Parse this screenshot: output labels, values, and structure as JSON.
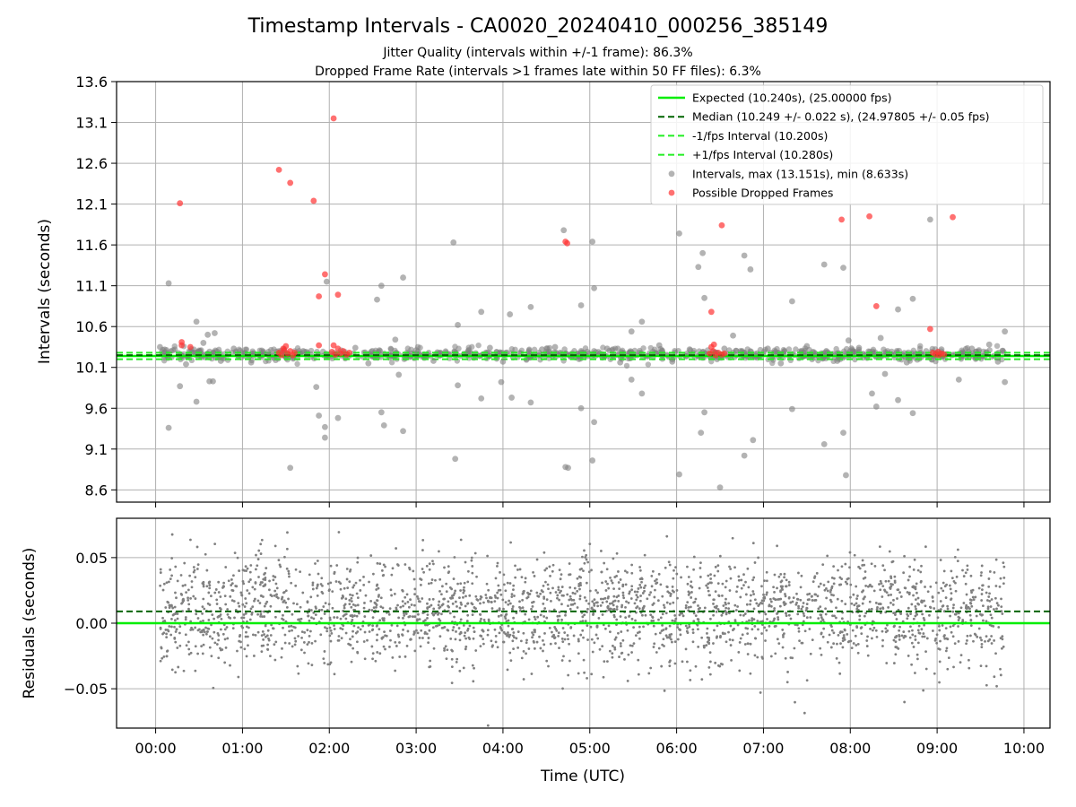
{
  "title": "Timestamp Intervals - CA0020_20240410_000256_385149",
  "subtitle_lines": [
    "Jitter Quality (intervals within +/-1 frame): 86.3%",
    "Dropped Frame Rate (intervals >1 frames late within 50 FF files): 6.3%"
  ],
  "colors": {
    "expected": "#00ee00",
    "median": "#006400",
    "fps_band": "#22ee22",
    "intervals": "#808080",
    "dropped": "#ff3333",
    "grid": "#b0b0b0"
  },
  "chart_data": [
    {
      "type": "scatter",
      "ylabel": "Intervals (seconds)",
      "xlim_hours": [
        -0.45,
        10.3
      ],
      "ylim": [
        8.45,
        13.6
      ],
      "yticks": [
        8.6,
        9.1,
        9.6,
        10.1,
        10.6,
        11.1,
        11.6,
        12.1,
        12.6,
        13.1,
        13.6
      ],
      "ytick_labels": [
        "8.6",
        "9.1",
        "9.6",
        "10.1",
        "10.6",
        "11.1",
        "11.6",
        "12.1",
        "12.6",
        "13.1",
        "13.6"
      ],
      "grid": true,
      "legend_position": "top-right",
      "lines": {
        "expected": 10.24,
        "median": 10.249,
        "minus_fps": 10.2,
        "plus_fps": 10.28
      },
      "legend": [
        {
          "label": "Expected (10.240s), (25.00000 fps)",
          "kind": "solid",
          "color_key": "expected"
        },
        {
          "label": "Median (10.249 +/- 0.022 s), (24.97805 +/- 0.05 fps)",
          "kind": "dashed",
          "color_key": "median"
        },
        {
          "label": "-1/fps Interval (10.200s)",
          "kind": "dashed",
          "color_key": "fps_band"
        },
        {
          "label": "+1/fps Interval (10.280s)",
          "kind": "dashed",
          "color_key": "fps_band"
        },
        {
          "label": "Intervals, max (13.151s), min (8.633s)",
          "kind": "dot",
          "color_key": "intervals"
        },
        {
          "label": "Possible Dropped Frames",
          "kind": "dot",
          "color_key": "dropped"
        }
      ],
      "series": [
        {
          "name": "Intervals, max (13.151s), min (8.633s)",
          "points": [
            [
              0.15,
              11.13
            ],
            [
              0.15,
              9.36
            ],
            [
              0.28,
              9.87
            ],
            [
              0.47,
              10.66
            ],
            [
              0.47,
              9.68
            ],
            [
              0.6,
              10.5
            ],
            [
              0.62,
              9.93
            ],
            [
              0.66,
              9.93
            ],
            [
              0.68,
              10.52
            ],
            [
              1.55,
              8.87
            ],
            [
              1.85,
              9.86
            ],
            [
              1.88,
              9.51
            ],
            [
              1.95,
              9.24
            ],
            [
              1.95,
              9.37
            ],
            [
              1.97,
              11.15
            ],
            [
              2.1,
              9.48
            ],
            [
              2.55,
              10.93
            ],
            [
              2.6,
              9.55
            ],
            [
              2.6,
              11.1
            ],
            [
              2.63,
              9.39
            ],
            [
              2.76,
              10.44
            ],
            [
              2.8,
              10.01
            ],
            [
              2.85,
              11.2
            ],
            [
              2.85,
              9.32
            ],
            [
              3.43,
              11.63
            ],
            [
              3.45,
              8.98
            ],
            [
              3.48,
              10.62
            ],
            [
              3.48,
              9.88
            ],
            [
              3.75,
              9.72
            ],
            [
              3.75,
              10.78
            ],
            [
              3.85,
              10.34
            ],
            [
              3.98,
              9.92
            ],
            [
              4.08,
              10.75
            ],
            [
              4.1,
              9.73
            ],
            [
              4.32,
              10.84
            ],
            [
              4.32,
              9.67
            ],
            [
              4.7,
              11.78
            ],
            [
              4.72,
              8.88
            ],
            [
              4.75,
              8.87
            ],
            [
              4.9,
              10.86
            ],
            [
              4.9,
              9.6
            ],
            [
              5.03,
              11.64
            ],
            [
              5.03,
              8.96
            ],
            [
              5.05,
              11.07
            ],
            [
              5.05,
              9.43
            ],
            [
              5.48,
              10.54
            ],
            [
              5.48,
              9.95
            ],
            [
              5.6,
              10.66
            ],
            [
              5.6,
              9.78
            ],
            [
              6.03,
              11.74
            ],
            [
              6.03,
              8.79
            ],
            [
              6.25,
              11.33
            ],
            [
              6.28,
              9.3
            ],
            [
              6.3,
              11.5
            ],
            [
              6.32,
              10.95
            ],
            [
              6.32,
              9.55
            ],
            [
              6.5,
              8.63
            ],
            [
              6.55,
              10.33
            ],
            [
              6.65,
              10.49
            ],
            [
              6.78,
              11.47
            ],
            [
              6.78,
              9.02
            ],
            [
              6.85,
              11.3
            ],
            [
              6.88,
              9.21
            ],
            [
              7.33,
              10.91
            ],
            [
              7.33,
              9.59
            ],
            [
              7.7,
              11.36
            ],
            [
              7.7,
              9.16
            ],
            [
              7.92,
              11.32
            ],
            [
              7.92,
              9.3
            ],
            [
              7.95,
              8.78
            ],
            [
              7.98,
              10.43
            ],
            [
              8.25,
              9.78
            ],
            [
              8.3,
              9.62
            ],
            [
              8.35,
              10.46
            ],
            [
              8.4,
              10.02
            ],
            [
              8.55,
              10.81
            ],
            [
              8.55,
              9.7
            ],
            [
              8.72,
              10.94
            ],
            [
              8.72,
              9.54
            ],
            [
              8.92,
              11.91
            ],
            [
              9.05,
              10.32
            ],
            [
              9.25,
              9.95
            ],
            [
              9.6,
              10.38
            ],
            [
              9.78,
              10.54
            ],
            [
              9.78,
              9.92
            ],
            [
              0.05,
              10.35
            ],
            [
              0.2,
              10.31
            ],
            [
              0.35,
              10.14
            ],
            [
              0.55,
              10.4
            ],
            [
              0.75,
              10.18
            ],
            [
              0.9,
              10.33
            ],
            [
              1.1,
              10.16
            ],
            [
              1.3,
              10.29
            ],
            [
              1.7,
              10.3
            ],
            [
              2.3,
              10.34
            ],
            [
              2.45,
              10.15
            ],
            [
              3.0,
              10.31
            ],
            [
              3.2,
              10.18
            ],
            [
              3.6,
              10.3
            ],
            [
              4.0,
              10.17
            ],
            [
              4.45,
              10.32
            ],
            [
              4.6,
              10.35
            ],
            [
              5.2,
              10.33
            ],
            [
              5.35,
              10.16
            ],
            [
              5.8,
              10.37
            ],
            [
              5.95,
              10.17
            ],
            [
              6.15,
              10.32
            ],
            [
              7.05,
              10.33
            ],
            [
              7.2,
              10.15
            ],
            [
              7.5,
              10.36
            ],
            [
              7.85,
              10.18
            ],
            [
              8.1,
              10.34
            ],
            [
              8.65,
              10.16
            ],
            [
              9.4,
              10.33
            ],
            [
              9.7,
              10.17
            ]
          ]
        },
        {
          "name": "Possible Dropped Frames",
          "points": [
            [
              0.28,
              12.11
            ],
            [
              0.3,
              10.41
            ],
            [
              0.3,
              10.37
            ],
            [
              0.4,
              10.35
            ],
            [
              1.42,
              12.52
            ],
            [
              1.55,
              12.36
            ],
            [
              1.82,
              12.14
            ],
            [
              1.88,
              10.97
            ],
            [
              1.88,
              10.37
            ],
            [
              1.95,
              11.24
            ],
            [
              2.05,
              13.15
            ],
            [
              2.1,
              10.99
            ],
            [
              2.05,
              10.37
            ],
            [
              4.72,
              11.64
            ],
            [
              4.74,
              11.62
            ],
            [
              6.4,
              10.78
            ],
            [
              6.52,
              11.84
            ],
            [
              7.9,
              11.91
            ],
            [
              8.22,
              11.95
            ],
            [
              8.3,
              10.85
            ],
            [
              8.92,
              10.57
            ],
            [
              9.18,
              11.94
            ],
            [
              1.42,
              10.28
            ],
            [
              1.45,
              10.25
            ],
            [
              1.48,
              10.31
            ],
            [
              1.5,
              10.36
            ],
            [
              1.52,
              10.27
            ],
            [
              1.55,
              10.3
            ],
            [
              1.58,
              10.25
            ],
            [
              1.6,
              10.28
            ],
            [
              1.47,
              10.33
            ],
            [
              2.03,
              10.29
            ],
            [
              2.07,
              10.26
            ],
            [
              2.1,
              10.33
            ],
            [
              2.13,
              10.27
            ],
            [
              2.16,
              10.3
            ],
            [
              2.2,
              10.26
            ],
            [
              2.23,
              10.28
            ],
            [
              6.38,
              10.27
            ],
            [
              6.4,
              10.35
            ],
            [
              6.42,
              10.3
            ],
            [
              6.45,
              10.25
            ],
            [
              6.48,
              10.28
            ],
            [
              6.52,
              10.26
            ],
            [
              6.55,
              10.27
            ],
            [
              6.43,
              10.38
            ],
            [
              8.95,
              10.28
            ],
            [
              8.98,
              10.26
            ],
            [
              9.01,
              10.29
            ],
            [
              9.05,
              10.27
            ],
            [
              9.08,
              10.26
            ],
            [
              9.02,
              10.25
            ]
          ]
        }
      ],
      "dense_band": {
        "y_center": 10.26,
        "spread": 0.07,
        "y_min": 10.12,
        "y_max": 10.42,
        "x_start": 0.05,
        "x_end": 9.78,
        "count": 900
      }
    },
    {
      "type": "scatter",
      "ylabel": "Residuals (seconds)",
      "xlabel": "Time (UTC)",
      "xlim_hours": [
        -0.45,
        10.3
      ],
      "ylim": [
        -0.08,
        0.08
      ],
      "yticks": [
        -0.05,
        0.0,
        0.05
      ],
      "ytick_labels": [
        "−0.05",
        "0.00",
        "0.05"
      ],
      "xticks": [
        0,
        1,
        2,
        3,
        4,
        5,
        6,
        7,
        8,
        9,
        10
      ],
      "xtick_labels": [
        "00:00",
        "01:00",
        "02:00",
        "03:00",
        "04:00",
        "05:00",
        "06:00",
        "07:00",
        "08:00",
        "09:00",
        "10:00"
      ],
      "grid": true,
      "lines": {
        "expected": 0.0,
        "median": 0.009
      },
      "residual_cloud": {
        "x_start": 0.05,
        "x_end": 9.78,
        "mean": 0.008,
        "std": 0.021,
        "count": 2600
      }
    }
  ]
}
